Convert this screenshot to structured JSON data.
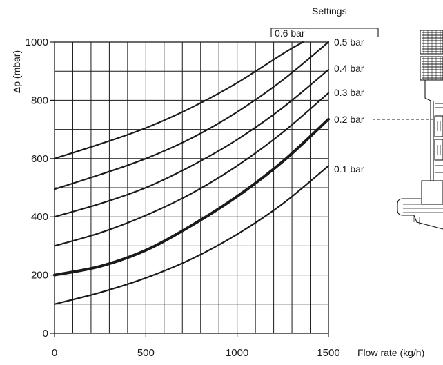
{
  "chart_data": {
    "type": "line",
    "title": "",
    "xlabel": "Flow rate (kg/h)",
    "ylabel": "Δp (mbar)",
    "xlim": [
      0,
      1500
    ],
    "ylim": [
      0,
      1000
    ],
    "x_ticks": [
      0,
      500,
      1000,
      1500
    ],
    "y_ticks": [
      0,
      200,
      400,
      600,
      800,
      1000
    ],
    "x_grid_step": 100,
    "y_grid_step": 100,
    "grid": true,
    "legend_title": "Settings",
    "highlighted_series": "0.2 bar",
    "series": [
      {
        "name": "0.1 bar",
        "x": [
          0,
          250,
          500,
          750,
          1000,
          1250,
          1500
        ],
        "y": [
          100,
          140,
          190,
          255,
          340,
          445,
          575
        ]
      },
      {
        "name": "0.2 bar",
        "x": [
          0,
          250,
          500,
          750,
          1000,
          1250,
          1500
        ],
        "y": [
          200,
          230,
          285,
          370,
          470,
          590,
          735
        ]
      },
      {
        "name": "0.3 bar",
        "x": [
          0,
          250,
          500,
          750,
          1000,
          1250,
          1500
        ],
        "y": [
          300,
          345,
          405,
          480,
          575,
          690,
          825
        ]
      },
      {
        "name": "0.4 bar",
        "x": [
          0,
          250,
          500,
          750,
          1000,
          1250,
          1500
        ],
        "y": [
          400,
          445,
          500,
          575,
          665,
          775,
          905
        ]
      },
      {
        "name": "0.5 bar",
        "x": [
          0,
          250,
          500,
          750,
          1000,
          1250,
          1500
        ],
        "y": [
          495,
          545,
          600,
          670,
          760,
          870,
          1000
        ]
      },
      {
        "name": "0.6 bar",
        "x": [
          0,
          250,
          500,
          750,
          1000,
          1250,
          1360
        ],
        "y": [
          600,
          650,
          705,
          775,
          860,
          960,
          1000
        ]
      }
    ]
  }
}
